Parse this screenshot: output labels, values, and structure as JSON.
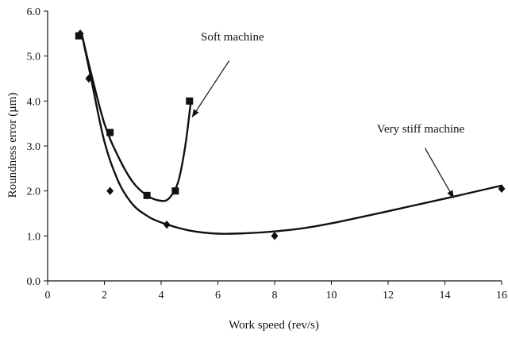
{
  "chart_data": {
    "type": "scatter",
    "title": "",
    "xlabel": "Work speed (rev/s)",
    "ylabel": "Roundness error (µm)",
    "xlim": [
      0,
      16
    ],
    "ylim": [
      0.0,
      6.0
    ],
    "xticks": [
      "0",
      "2",
      "4",
      "6",
      "8",
      "10",
      "12",
      "14",
      "16"
    ],
    "yticks": [
      "0.0",
      "1.0",
      "2.0",
      "3.0",
      "4.0",
      "5.0",
      "6.0"
    ],
    "grid": false,
    "legend": "none",
    "series": [
      {
        "name": "Soft machine",
        "marker": "square",
        "color": "#111111",
        "points": [
          {
            "x": 1.1,
            "y": 5.45
          },
          {
            "x": 2.2,
            "y": 3.3
          },
          {
            "x": 3.5,
            "y": 1.9
          },
          {
            "x": 4.5,
            "y": 2.0
          },
          {
            "x": 5.0,
            "y": 4.0
          }
        ],
        "curve": [
          {
            "x": 1.2,
            "y": 5.5
          },
          {
            "x": 1.5,
            "y": 4.7
          },
          {
            "x": 2.0,
            "y": 3.5
          },
          {
            "x": 2.5,
            "y": 2.75
          },
          {
            "x": 3.0,
            "y": 2.2
          },
          {
            "x": 3.5,
            "y": 1.9
          },
          {
            "x": 4.0,
            "y": 1.78
          },
          {
            "x": 4.3,
            "y": 1.85
          },
          {
            "x": 4.6,
            "y": 2.2
          },
          {
            "x": 4.85,
            "y": 3.0
          },
          {
            "x": 5.05,
            "y": 4.0
          }
        ]
      },
      {
        "name": "Very stiff machine",
        "marker": "diamond",
        "color": "#111111",
        "points": [
          {
            "x": 1.15,
            "y": 5.5
          },
          {
            "x": 1.45,
            "y": 4.5
          },
          {
            "x": 2.2,
            "y": 2.0
          },
          {
            "x": 4.2,
            "y": 1.25
          },
          {
            "x": 8.0,
            "y": 1.0
          },
          {
            "x": 16.0,
            "y": 2.05
          }
        ],
        "curve": [
          {
            "x": 1.2,
            "y": 5.5
          },
          {
            "x": 1.5,
            "y": 4.6
          },
          {
            "x": 2.0,
            "y": 3.1
          },
          {
            "x": 2.5,
            "y": 2.2
          },
          {
            "x": 3.0,
            "y": 1.7
          },
          {
            "x": 3.5,
            "y": 1.45
          },
          {
            "x": 4.0,
            "y": 1.3
          },
          {
            "x": 5.0,
            "y": 1.12
          },
          {
            "x": 6.0,
            "y": 1.05
          },
          {
            "x": 7.0,
            "y": 1.06
          },
          {
            "x": 8.0,
            "y": 1.1
          },
          {
            "x": 9.0,
            "y": 1.17
          },
          {
            "x": 10.0,
            "y": 1.28
          },
          {
            "x": 12.0,
            "y": 1.55
          },
          {
            "x": 14.0,
            "y": 1.83
          },
          {
            "x": 16.0,
            "y": 2.12
          }
        ]
      }
    ],
    "annotations": [
      {
        "text": "Soft machine",
        "text_x": 5.4,
        "text_y": 5.35,
        "arrow_from": {
          "x": 6.4,
          "y": 4.9
        },
        "arrow_to": {
          "x": 5.1,
          "y": 3.65
        }
      },
      {
        "text": "Very stiff machine",
        "text_x": 11.6,
        "text_y": 3.3,
        "arrow_from": {
          "x": 13.3,
          "y": 2.95
        },
        "arrow_to": {
          "x": 14.3,
          "y": 1.85
        }
      }
    ]
  }
}
